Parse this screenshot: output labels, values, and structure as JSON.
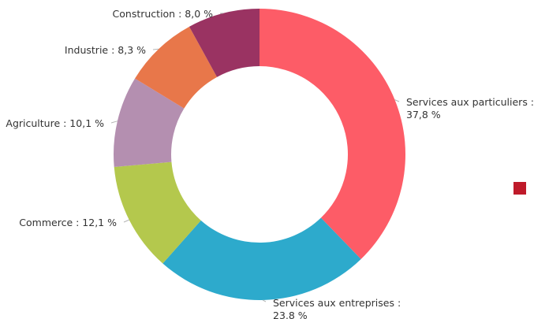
{
  "chart_data": {
    "type": "pie",
    "variant": "donut",
    "slices": [
      {
        "label": "Services aux particuliers",
        "value": 37.8,
        "text": [
          "Services aux particuliers :",
          "37,8 %"
        ],
        "color": "#fd5c67"
      },
      {
        "label": "Services aux entreprises",
        "value": 23.8,
        "text": [
          "Services aux entreprises :",
          "23,8 %"
        ],
        "color": "#2daacc"
      },
      {
        "label": "Commerce",
        "value": 12.1,
        "text": [
          "Commerce : 12,1 %"
        ],
        "color": "#b4c84d"
      },
      {
        "label": "Agriculture",
        "value": 10.1,
        "text": [
          "Agriculture : 10,1 %"
        ],
        "color": "#b48fb0"
      },
      {
        "label": "Industrie",
        "value": 8.3,
        "text": [
          "Industrie : 8,3 %"
        ],
        "color": "#e8774a"
      },
      {
        "label": "Construction",
        "value": 8.0,
        "text": [
          "Construction : 8,0 %"
        ],
        "color": "#9a3362"
      }
    ],
    "start_angle": "12 o'clock",
    "direction": "clockwise",
    "legend_marker_color": "#bf1a2a"
  }
}
